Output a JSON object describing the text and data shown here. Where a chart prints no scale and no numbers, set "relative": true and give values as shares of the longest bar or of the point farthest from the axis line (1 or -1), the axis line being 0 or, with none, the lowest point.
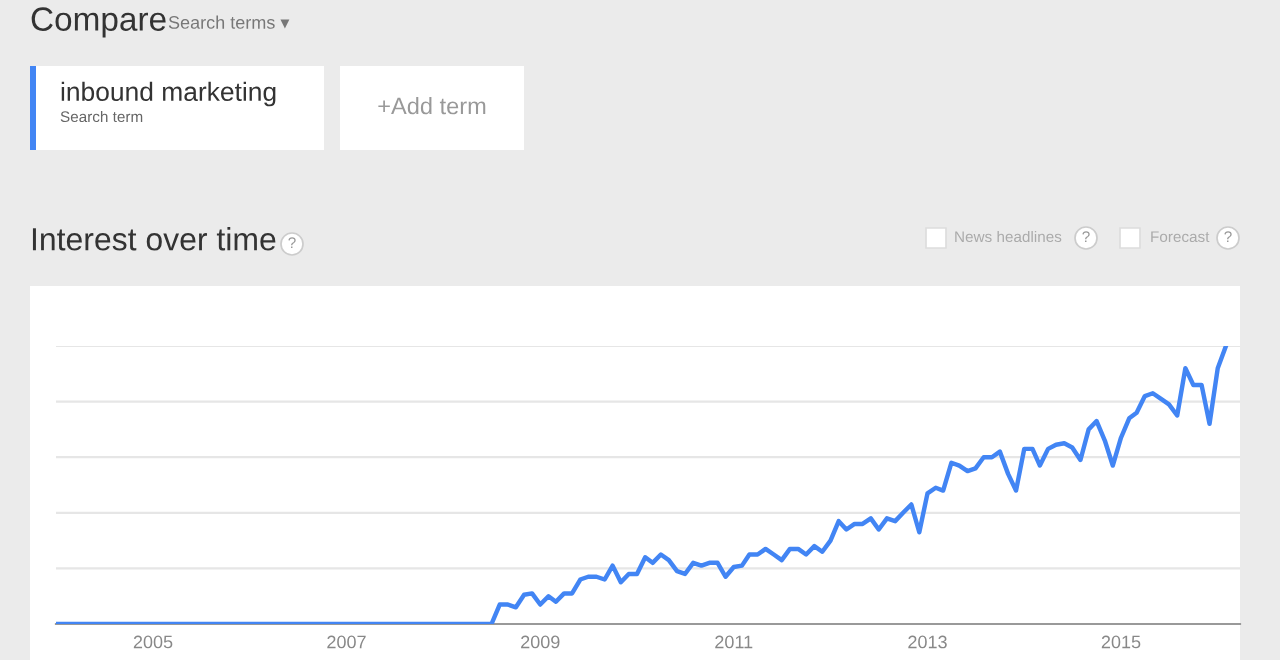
{
  "chart_data": {
    "type": "line",
    "title": "Interest over time",
    "relative": true,
    "grid": "y",
    "legend": false,
    "marker": "none",
    "line_style": "solid",
    "annotations": [
      "Compare",
      "Search terms ▾",
      "inbound marketing",
      "Search term",
      "+Add term",
      "?",
      "News headlines",
      "?",
      "Forecast",
      "?"
    ],
    "xlim": [
      "2004-01",
      "2016-03-25"
    ],
    "xticks": [
      "2005",
      "2007",
      "2009",
      "2011",
      "2013",
      "2015"
    ],
    "series": [
      {
        "color": "#4285f4",
        "x": [
          "2004-01",
          "2008-07",
          "2008-08",
          "2008-09",
          "2008-10",
          "2008-11",
          "2008-12",
          "2009-01",
          "2009-02",
          "2009-03",
          "2009-04",
          "2009-05",
          "2009-06",
          "2009-07",
          "2009-08",
          "2009-09",
          "2009-10",
          "2009-11",
          "2009-12",
          "2010-01",
          "2010-02",
          "2010-03",
          "2010-04",
          "2010-05",
          "2010-06",
          "2010-07",
          "2010-08",
          "2010-09",
          "2010-10",
          "2010-11",
          "2010-12",
          "2011-01",
          "2011-02",
          "2011-03",
          "2011-04",
          "2011-05",
          "2011-06",
          "2011-07",
          "2011-08",
          "2011-09",
          "2011-10",
          "2011-11",
          "2011-12",
          "2012-01",
          "2012-02",
          "2012-03",
          "2012-04",
          "2012-05",
          "2012-06",
          "2012-07",
          "2012-08",
          "2012-09",
          "2012-10",
          "2012-11",
          "2012-12",
          "2013-01",
          "2013-02",
          "2013-03",
          "2013-04",
          "2013-05",
          "2013-06",
          "2013-07",
          "2013-08",
          "2013-09",
          "2013-10",
          "2013-11",
          "2013-12",
          "2014-01",
          "2014-02",
          "2014-03",
          "2014-04",
          "2014-05",
          "2014-06",
          "2014-07",
          "2014-08",
          "2014-09",
          "2014-10",
          "2014-11",
          "2014-12",
          "2015-01",
          "2015-02",
          "2015-03",
          "2015-04",
          "2015-05",
          "2015-06",
          "2015-07",
          "2015-08",
          "2015-09",
          "2015-10",
          "2015-11",
          "2015-12",
          "2016-01",
          "2016-02"
        ],
        "values": [
          0,
          0,
          0.07,
          0.07,
          0.06,
          0.105,
          0.11,
          0.07,
          0.1,
          0.08,
          0.11,
          0.11,
          0.16,
          0.17,
          0.17,
          0.16,
          0.21,
          0.15,
          0.18,
          0.18,
          0.24,
          0.22,
          0.25,
          0.23,
          0.19,
          0.18,
          0.22,
          0.21,
          0.22,
          0.22,
          0.17,
          0.205,
          0.21,
          0.25,
          0.25,
          0.27,
          0.25,
          0.23,
          0.27,
          0.27,
          0.25,
          0.28,
          0.26,
          0.3,
          0.37,
          0.34,
          0.36,
          0.36,
          0.38,
          0.34,
          0.38,
          0.37,
          0.4,
          0.43,
          0.33,
          0.47,
          0.49,
          0.48,
          0.58,
          0.57,
          0.55,
          0.56,
          0.6,
          0.6,
          0.62,
          0.54,
          0.48,
          0.63,
          0.63,
          0.57,
          0.63,
          0.645,
          0.65,
          0.635,
          0.59,
          0.7,
          0.73,
          0.66,
          0.57,
          0.67,
          0.74,
          0.76,
          0.82,
          0.83,
          0.81,
          0.79,
          0.75,
          0.92,
          0.86,
          0.86,
          0.72,
          0.92,
          1.0
        ]
      }
    ]
  }
}
